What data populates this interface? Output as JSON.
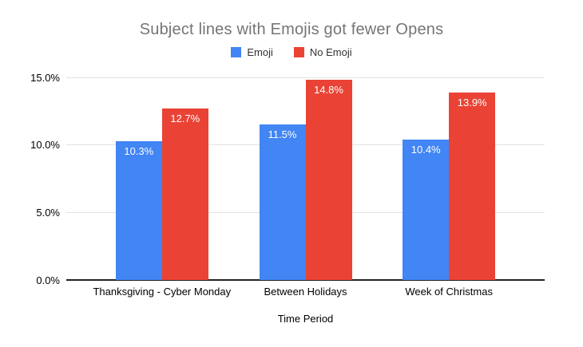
{
  "chart_data": {
    "type": "bar",
    "title": "Subject lines with Emojis got fewer Opens",
    "xlabel": "Time Period",
    "ylabel": "",
    "categories": [
      "Thanksgiving - Cyber Monday",
      "Between Holidays",
      "Week of Christmas"
    ],
    "series": [
      {
        "name": "Emoji",
        "color": "#4285F4",
        "values": [
          10.3,
          11.5,
          10.4
        ],
        "labels": [
          "10.3%",
          "11.5%",
          "10.4%"
        ]
      },
      {
        "name": "No Emoji",
        "color": "#EA4335",
        "values": [
          12.7,
          14.8,
          13.9
        ],
        "labels": [
          "12.7%",
          "14.8%",
          "13.9%"
        ]
      }
    ],
    "ylim": [
      0,
      15
    ],
    "y_ticks": [
      "0.0%",
      "5.0%",
      "10.0%",
      "15.0%"
    ],
    "grid": true,
    "legend_position": "top",
    "title_color": "#757575",
    "value_label_color": "#FFFFFF",
    "background_color": "#FFFFFF"
  }
}
